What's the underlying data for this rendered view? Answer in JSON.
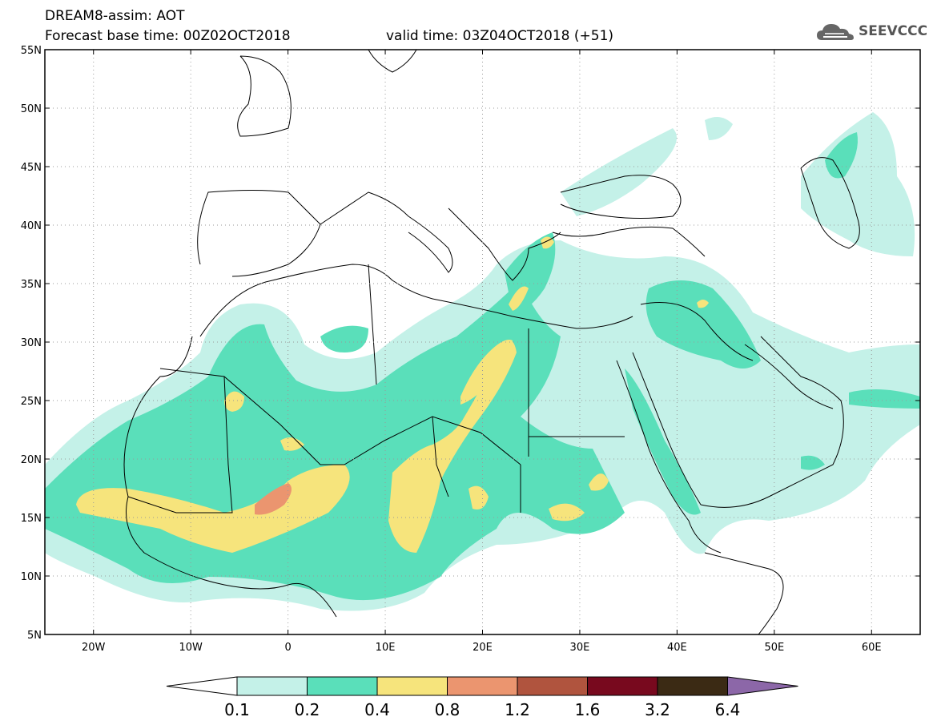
{
  "title": {
    "line1": "DREAM8-assim: AOT",
    "line2": "Forecast base time: 00Z02OCT2018",
    "line2b": "valid time: 03Z04OCT2018 (+51)"
  },
  "logo": {
    "text": "SEEVCCC"
  },
  "map": {
    "lon_range": [
      -25,
      65
    ],
    "lat_range": [
      5,
      55
    ],
    "lat_ticks": [
      {
        "v": 55,
        "label": "55N"
      },
      {
        "v": 50,
        "label": "50N"
      },
      {
        "v": 45,
        "label": "45N"
      },
      {
        "v": 40,
        "label": "40N"
      },
      {
        "v": 35,
        "label": "35N"
      },
      {
        "v": 30,
        "label": "30N"
      },
      {
        "v": 25,
        "label": "25N"
      },
      {
        "v": 20,
        "label": "20N"
      },
      {
        "v": 15,
        "label": "15N"
      },
      {
        "v": 10,
        "label": "10N"
      },
      {
        "v": 5,
        "label": "5N"
      }
    ],
    "lon_ticks": [
      {
        "v": -20,
        "label": "20W"
      },
      {
        "v": -10,
        "label": "10W"
      },
      {
        "v": 0,
        "label": "0"
      },
      {
        "v": 10,
        "label": "10E"
      },
      {
        "v": 20,
        "label": "20E"
      },
      {
        "v": 30,
        "label": "30E"
      },
      {
        "v": 40,
        "label": "40E"
      },
      {
        "v": 50,
        "label": "50E"
      },
      {
        "v": 60,
        "label": "60E"
      }
    ],
    "grid": true
  },
  "colorbar": {
    "colors": [
      "#c4f1e8",
      "#5adfba",
      "#f6e47c",
      "#eb956f",
      "#b0543e",
      "#78091e",
      "#3b2a14",
      "#8c67a8"
    ],
    "labels": [
      "0.1",
      "0.2",
      "0.4",
      "0.8",
      "1.2",
      "1.6",
      "3.2",
      "6.4"
    ]
  }
}
